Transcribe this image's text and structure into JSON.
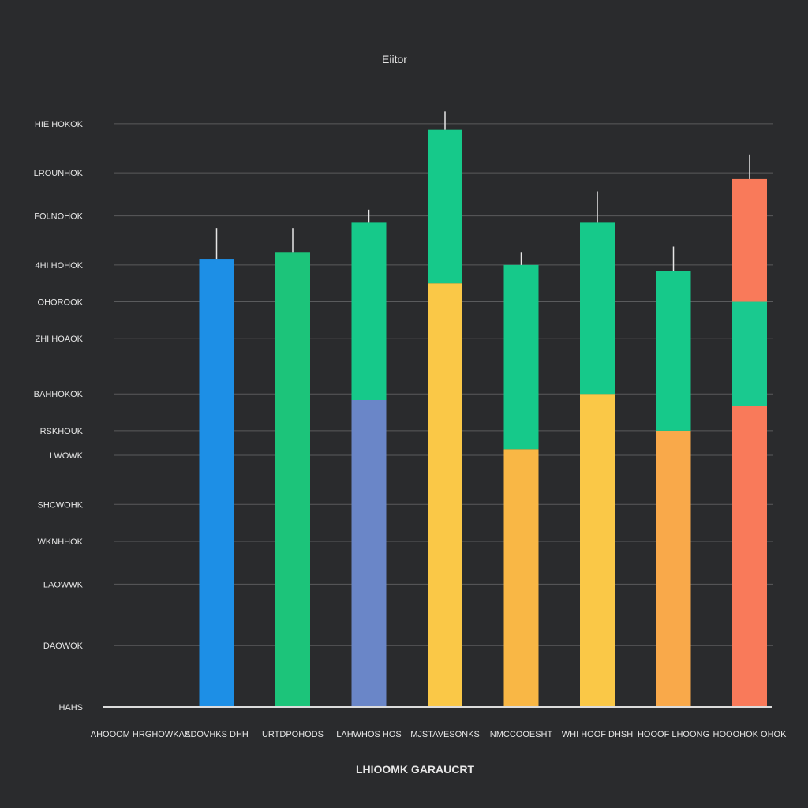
{
  "chart_data": {
    "type": "bar",
    "title": "Eiitor",
    "xlabel": "LHIOOMK GARAUCRT",
    "ylabel": "",
    "ylim": [
      0,
      100
    ],
    "y_ticks": [
      {
        "value": 0,
        "label": "HAHS"
      },
      {
        "value": 10,
        "label": "DAOWOK"
      },
      {
        "value": 20,
        "label": "LAOWWK"
      },
      {
        "value": 27,
        "label": "WKNHHOK"
      },
      {
        "value": 33,
        "label": "SHCWOHK"
      },
      {
        "value": 41,
        "label": "LWOWK"
      },
      {
        "value": 45,
        "label": "RSKHOUK"
      },
      {
        "value": 51,
        "label": "BAHHOKOK"
      },
      {
        "value": 60,
        "label": "ZHI HOAOK"
      },
      {
        "value": 66,
        "label": "OHOROOK"
      },
      {
        "value": 72,
        "label": "4HI HOHOK"
      },
      {
        "value": 80,
        "label": "FOLNOHOK"
      },
      {
        "value": 87,
        "label": "LROUNHOK"
      },
      {
        "value": 95,
        "label": "HIE HOKOK"
      }
    ],
    "categories": [
      "AHOOOM HRGHOWKAS",
      "ADOVHKS DHH",
      "URTDPOHODS",
      "LAHWHOS HOS",
      "MJSTAVESONKS",
      "NMCCOOESHT",
      "WHI HOOF DHSH",
      "HOOOF LHOONG",
      "HOOOHOK OHOK"
    ],
    "segments": [
      [],
      [
        {
          "value": 73,
          "color": "#1d8fe6"
        }
      ],
      [
        {
          "value": 74,
          "color": "#1cc47a"
        }
      ],
      [
        {
          "value": 50,
          "color": "#6a86c8"
        },
        {
          "value": 29,
          "color": "#16c98a"
        }
      ],
      [
        {
          "value": 69,
          "color": "#fac847"
        },
        {
          "value": 25,
          "color": "#16c98a"
        }
      ],
      [
        {
          "value": 42,
          "color": "#f9b745"
        },
        {
          "value": 30,
          "color": "#16c98a"
        }
      ],
      [
        {
          "value": 51,
          "color": "#fac847"
        },
        {
          "value": 28,
          "color": "#16c98a"
        }
      ],
      [
        {
          "value": 45,
          "color": "#f9a94a"
        },
        {
          "value": 26,
          "color": "#16c98a"
        }
      ],
      [
        {
          "value": 49,
          "color": "#f97a5a"
        },
        {
          "value": 17,
          "color": "#1ac98f"
        },
        {
          "value": 20,
          "color": "#f97a5a"
        }
      ]
    ],
    "error_caps": [
      0,
      5,
      4,
      2,
      3,
      2,
      5,
      4,
      4
    ],
    "grid": true,
    "background": "#2a2b2d",
    "grid_color": "#5a5b5d",
    "text_color": "#e6e6e6"
  }
}
